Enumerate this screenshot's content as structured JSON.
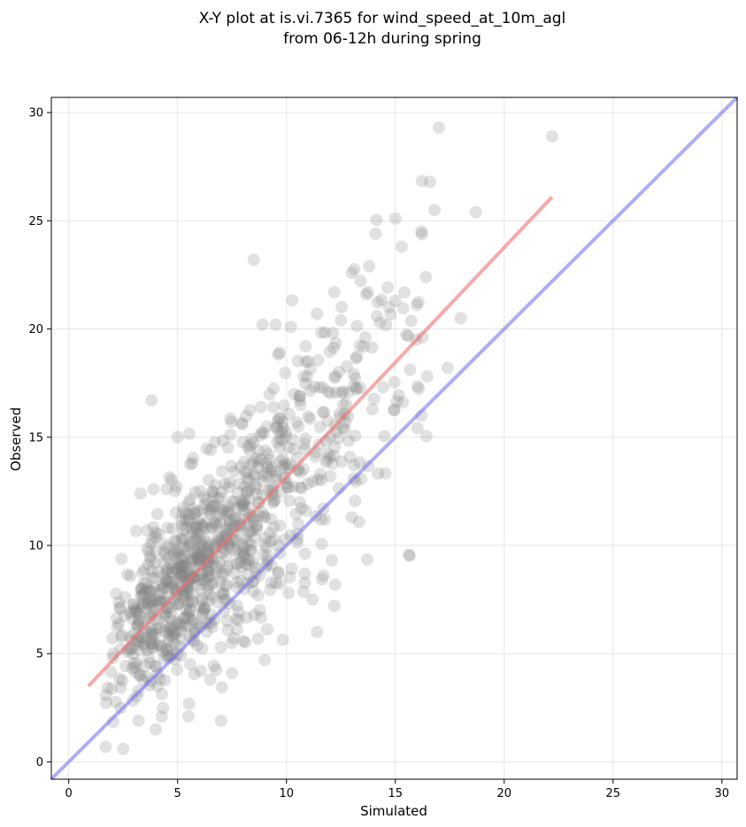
{
  "chart_data": {
    "type": "scatter",
    "title": [
      "X-Y plot at is.vi.7365 for wind_speed_at_10m_agl",
      "from 06-12h during spring"
    ],
    "xlabel": "Simulated",
    "ylabel": "Observed",
    "xlim": [
      -0.8,
      30.7
    ],
    "ylim": [
      -0.8,
      30.7
    ],
    "xticks": [
      0,
      5,
      10,
      15,
      20,
      25,
      30
    ],
    "yticks": [
      0,
      5,
      10,
      15,
      20,
      25,
      30
    ],
    "grid": true,
    "colors": {
      "points": "#808080",
      "regression": "#f07070",
      "identity": "#6a6af0",
      "grid": "#e6e6e6"
    },
    "identity_line": {
      "x": [
        -0.8,
        30.7
      ],
      "y": [
        -0.8,
        30.7
      ]
    },
    "regression_line": {
      "x": [
        0.9,
        22.2
      ],
      "y": [
        3.5,
        26.1
      ]
    },
    "point_cloud": {
      "count": 1000,
      "x_range": [
        0.8,
        22.3
      ],
      "y_range": [
        0.5,
        29.3
      ],
      "median": [
        6.8,
        9.3
      ]
    },
    "points": [
      [
        22.2,
        28.9
      ],
      [
        17.0,
        29.3
      ],
      [
        16.6,
        26.8
      ],
      [
        16.8,
        25.5
      ],
      [
        18.7,
        25.4
      ],
      [
        15.0,
        25.1
      ],
      [
        8.5,
        23.2
      ],
      [
        13.8,
        22.9
      ],
      [
        13.0,
        22.6
      ],
      [
        16.4,
        22.4
      ],
      [
        12.2,
        21.7
      ],
      [
        14.7,
        21.0
      ],
      [
        15.0,
        21.3
      ],
      [
        11.4,
        20.7
      ],
      [
        8.9,
        20.2
      ],
      [
        9.5,
        20.2
      ],
      [
        10.2,
        20.1
      ],
      [
        12.5,
        20.4
      ],
      [
        14.3,
        20.3
      ],
      [
        18.0,
        20.5
      ],
      [
        3.8,
        16.7
      ],
      [
        16.2,
        16.0
      ],
      [
        17.4,
        18.2
      ],
      [
        5.0,
        15.0
      ],
      [
        3.3,
        12.4
      ],
      [
        3.9,
        12.6
      ],
      [
        4.5,
        12.6
      ],
      [
        5.8,
        6.0
      ],
      [
        11.4,
        6.0
      ],
      [
        12.2,
        7.2
      ],
      [
        7.0,
        1.9
      ],
      [
        5.5,
        2.1
      ],
      [
        4.0,
        1.5
      ],
      [
        2.5,
        0.6
      ],
      [
        1.7,
        0.7
      ],
      [
        3.2,
        1.9
      ],
      [
        9.0,
        4.7
      ],
      [
        7.5,
        4.1
      ],
      [
        6.5,
        3.8
      ],
      [
        10.5,
        10.3
      ],
      [
        10.1,
        7.8
      ],
      [
        8.7,
        7.7
      ],
      [
        11.6,
        11.2
      ],
      [
        13.0,
        11.3
      ],
      [
        11.7,
        8.6
      ],
      [
        11.2,
        7.5
      ]
    ]
  }
}
